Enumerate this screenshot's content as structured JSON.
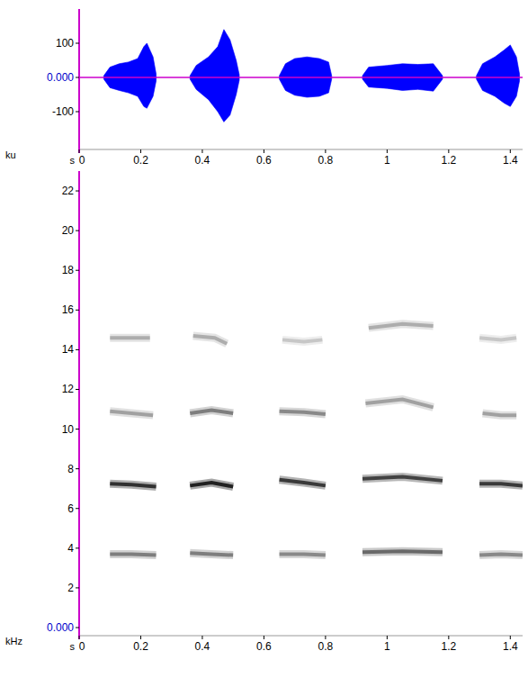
{
  "chart_data": [
    {
      "type": "waveform",
      "xlabel": "s",
      "ylabel": "ku",
      "color": "#0000ff",
      "xlim": [
        0,
        1.44
      ],
      "xticks": [
        0,
        0.2,
        0.4,
        0.6,
        0.8,
        1,
        1.2,
        1.4
      ],
      "ylim": [
        -200,
        200
      ],
      "yticks": [
        -100,
        {
          "value": 0,
          "label": "0.000"
        },
        100
      ],
      "series": [
        {
          "x": [
            0.08,
            0.1,
            0.13,
            0.16,
            0.19,
            0.21,
            0.22,
            0.24,
            0.25
          ],
          "values": [
            5,
            30,
            40,
            45,
            55,
            90,
            100,
            60,
            10
          ],
          "lower": [
            -5,
            -30,
            -38,
            -45,
            -55,
            -85,
            -90,
            -55,
            -10
          ]
        },
        {
          "x": [
            0.36,
            0.38,
            0.42,
            0.45,
            0.47,
            0.49,
            0.51,
            0.52
          ],
          "values": [
            5,
            35,
            60,
            90,
            140,
            110,
            50,
            8
          ],
          "lower": [
            -5,
            -35,
            -65,
            -100,
            -130,
            -110,
            -50,
            -8
          ]
        },
        {
          "x": [
            0.65,
            0.67,
            0.7,
            0.74,
            0.78,
            0.81,
            0.82
          ],
          "values": [
            5,
            40,
            55,
            60,
            55,
            45,
            5
          ],
          "lower": [
            -5,
            -38,
            -52,
            -58,
            -55,
            -45,
            -5
          ]
        },
        {
          "x": [
            0.92,
            0.94,
            1.0,
            1.05,
            1.1,
            1.15,
            1.18
          ],
          "values": [
            5,
            30,
            35,
            40,
            38,
            40,
            5
          ],
          "lower": [
            -5,
            -28,
            -32,
            -38,
            -35,
            -40,
            -5
          ]
        },
        {
          "x": [
            1.29,
            1.31,
            1.35,
            1.38,
            1.4,
            1.42,
            1.43
          ],
          "values": [
            5,
            40,
            60,
            80,
            95,
            60,
            10
          ],
          "lower": [
            -5,
            -38,
            -55,
            -75,
            -85,
            -55,
            -10
          ]
        }
      ]
    },
    {
      "type": "spectrogram",
      "xlabel": "s",
      "ylabel": "kHz",
      "color": "#000000",
      "xlim": [
        0,
        1.44
      ],
      "xticks": [
        0,
        0.2,
        0.4,
        0.6,
        0.8,
        1,
        1.2,
        1.4
      ],
      "ylim": [
        0,
        23
      ],
      "yticks": [
        {
          "value": 0,
          "label": "0.000"
        },
        2,
        4,
        6,
        8,
        10,
        12,
        14,
        16,
        18,
        20,
        22
      ],
      "series": [
        {
          "x": [
            0.1,
            0.17,
            0.25
          ],
          "values": [
            3.7,
            3.7,
            3.65
          ],
          "level": 0.5
        },
        {
          "x": [
            0.1,
            0.17,
            0.25
          ],
          "values": [
            7.25,
            7.2,
            7.1
          ],
          "level": 0.9
        },
        {
          "x": [
            0.1,
            0.17,
            0.24
          ],
          "values": [
            10.9,
            10.8,
            10.7
          ],
          "level": 0.35
        },
        {
          "x": [
            0.1,
            0.17,
            0.23
          ],
          "values": [
            14.6,
            14.6,
            14.6
          ],
          "level": 0.3
        },
        {
          "x": [
            0.36,
            0.43,
            0.5
          ],
          "values": [
            3.75,
            3.7,
            3.65
          ],
          "level": 0.5
        },
        {
          "x": [
            0.36,
            0.43,
            0.5
          ],
          "values": [
            7.15,
            7.3,
            7.1
          ],
          "level": 1
        },
        {
          "x": [
            0.36,
            0.43,
            0.5
          ],
          "values": [
            10.8,
            10.95,
            10.8
          ],
          "level": 0.5
        },
        {
          "x": [
            0.37,
            0.44,
            0.48
          ],
          "values": [
            14.7,
            14.6,
            14.3
          ],
          "level": 0.3
        },
        {
          "x": [
            0.65,
            0.73,
            0.8
          ],
          "values": [
            3.7,
            3.7,
            3.65
          ],
          "level": 0.45
        },
        {
          "x": [
            0.65,
            0.73,
            0.8
          ],
          "values": [
            7.45,
            7.3,
            7.15
          ],
          "level": 0.85
        },
        {
          "x": [
            0.65,
            0.73,
            0.8
          ],
          "values": [
            10.9,
            10.85,
            10.75
          ],
          "level": 0.45
        },
        {
          "x": [
            0.66,
            0.73,
            0.79
          ],
          "values": [
            14.5,
            14.4,
            14.5
          ],
          "level": 0.2
        },
        {
          "x": [
            0.92,
            1.05,
            1.18
          ],
          "values": [
            3.8,
            3.85,
            3.8
          ],
          "level": 0.6
        },
        {
          "x": [
            0.92,
            1.05,
            1.18
          ],
          "values": [
            7.5,
            7.6,
            7.4
          ],
          "level": 0.8
        },
        {
          "x": [
            0.93,
            1.05,
            1.15
          ],
          "values": [
            11.3,
            11.5,
            11.1
          ],
          "level": 0.35
        },
        {
          "x": [
            0.94,
            1.05,
            1.15
          ],
          "values": [
            15.1,
            15.3,
            15.2
          ],
          "level": 0.3
        },
        {
          "x": [
            1.3,
            1.37,
            1.44
          ],
          "values": [
            3.65,
            3.7,
            3.65
          ],
          "level": 0.45
        },
        {
          "x": [
            1.3,
            1.37,
            1.44
          ],
          "values": [
            7.25,
            7.25,
            7.15
          ],
          "level": 0.85
        },
        {
          "x": [
            1.31,
            1.37,
            1.42
          ],
          "values": [
            10.8,
            10.7,
            10.7
          ],
          "level": 0.35
        },
        {
          "x": [
            1.3,
            1.37,
            1.42
          ],
          "values": [
            14.6,
            14.5,
            14.6
          ],
          "level": 0.2
        }
      ]
    }
  ]
}
